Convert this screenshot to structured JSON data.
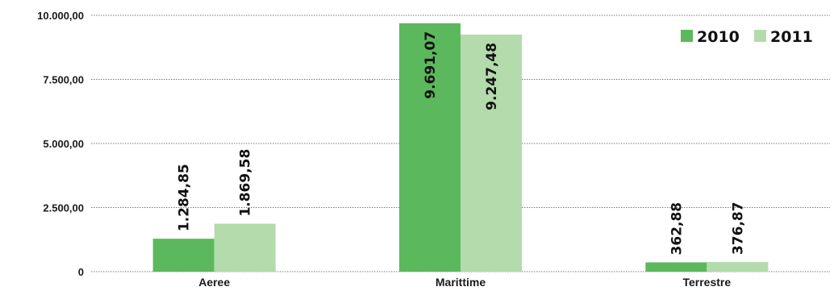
{
  "chart_data": {
    "type": "bar",
    "categories": [
      "Aeree",
      "Marittime",
      "Terrestre"
    ],
    "series": [
      {
        "name": "2010",
        "values": [
          1284.85,
          9691.07,
          362.88
        ],
        "labels": [
          "1.284,85",
          "9.691,07",
          "362,88"
        ],
        "color": "#5cb85c"
      },
      {
        "name": "2011",
        "values": [
          1869.58,
          9247.48,
          376.87
        ],
        "labels": [
          "1.869,58",
          "9.247,48",
          "376,87"
        ],
        "color": "#b3dbac"
      }
    ],
    "yticks": [
      0,
      2500,
      5000,
      7500,
      10000
    ],
    "ytick_labels": [
      "0",
      "2.500,00",
      "5.000,00",
      "7.500,00",
      "10.000,00"
    ],
    "ylim": [
      0,
      10000
    ],
    "grid": true,
    "legend_position": "top-right"
  }
}
